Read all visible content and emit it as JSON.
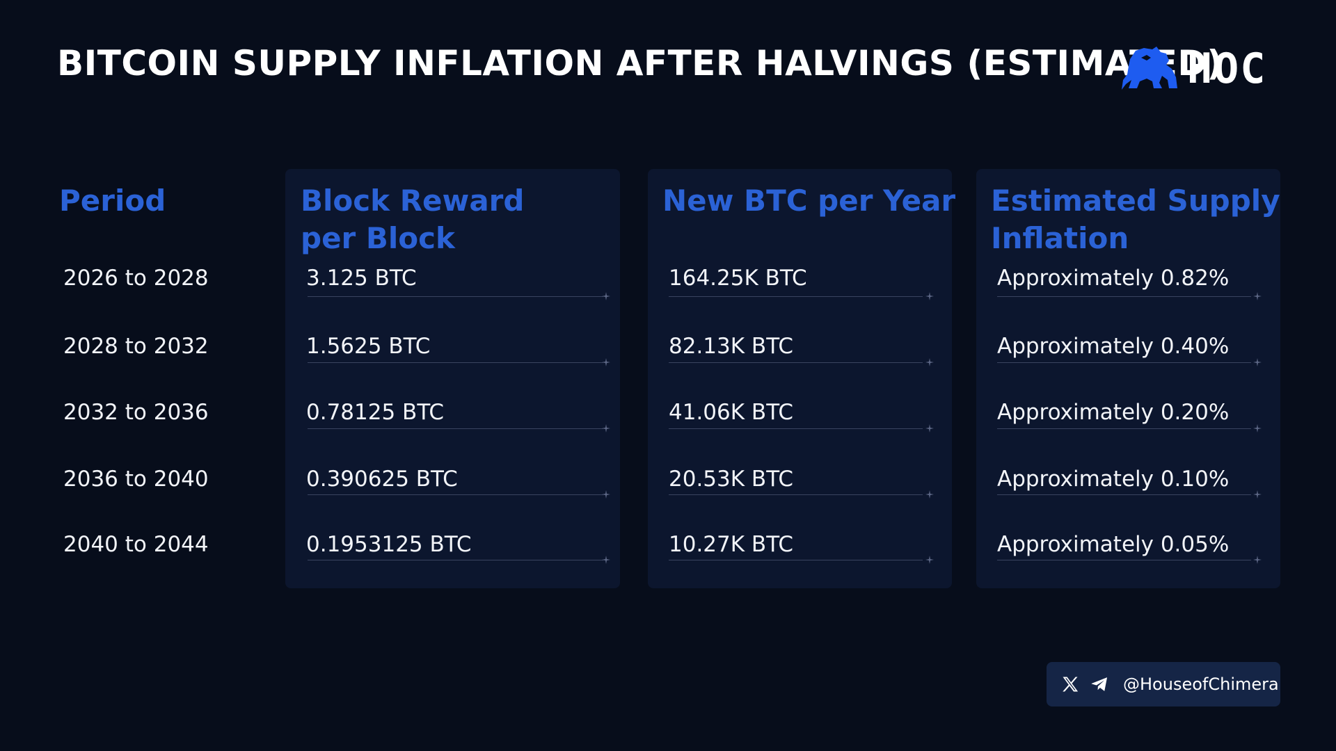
{
  "title": "BITCOIN SUPPLY INFLATION AFTER HALVINGS (ESTIMATED)",
  "logo": {
    "text": "HOC",
    "icon": "lion-icon",
    "color": "#1e5cf0"
  },
  "accent_color": "#2b62d6",
  "chart_data": {
    "type": "table",
    "columns": [
      "Period",
      "Block Reward per Block",
      "New BTC per Year",
      "Estimated Supply Inflation"
    ],
    "header_lines": [
      [
        "Period"
      ],
      [
        "Block Reward",
        "per Block"
      ],
      [
        "New BTC per Year"
      ],
      [
        "Estimated Supply",
        "Inflation"
      ]
    ],
    "rows": [
      [
        "2026 to 2028",
        "3.125 BTC",
        "164.25K BTC",
        "Approximately 0.82%"
      ],
      [
        "2028 to 2032",
        "1.5625 BTC",
        "82.13K BTC",
        "Approximately 0.40%"
      ],
      [
        "2032 to 2036",
        "0.78125 BTC",
        "41.06K BTC",
        "Approximately 0.20%"
      ],
      [
        "2036 to 2040",
        "0.390625 BTC",
        "20.53K BTC",
        "Approximately 0.10%"
      ],
      [
        "2040 to 2044",
        "0.1953125 BTC",
        "10.27K BTC",
        "Approximately 0.05%"
      ]
    ]
  },
  "social": {
    "handle": "@HouseofChimera",
    "icons": [
      "x-logo-icon",
      "telegram-icon"
    ]
  }
}
